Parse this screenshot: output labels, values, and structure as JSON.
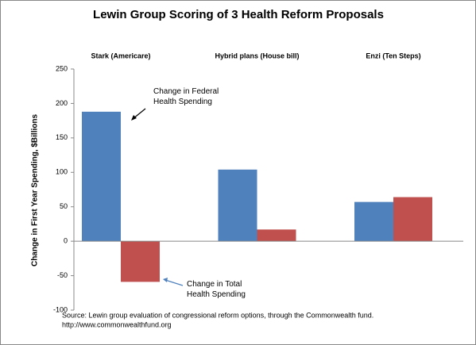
{
  "chart_data": {
    "type": "bar",
    "title": "Lewin Group Scoring of 3 Health Reform Proposals",
    "categories": [
      "Stark (Americare)",
      "Hybrid plans (House bill)",
      "Enzi (Ten Steps)"
    ],
    "series": [
      {
        "name": "Change in Federal Health Spending",
        "color": "#4f81bd",
        "values": [
          188,
          104,
          57
        ]
      },
      {
        "name": "Change in Total Health Spending",
        "color": "#c0504d",
        "values": [
          -59,
          17,
          64
        ]
      }
    ],
    "ylabel": "Change in First Year Spending, $Billions",
    "ylim": [
      -100,
      250
    ],
    "yticks": [
      -100,
      -50,
      0,
      50,
      100,
      150,
      200,
      250
    ],
    "grid": false,
    "source": [
      "Source: Lewin group evaluation of congressional reform options, through the Commonwealth fund.",
      "http://www.commonwealthfund.org"
    ]
  }
}
